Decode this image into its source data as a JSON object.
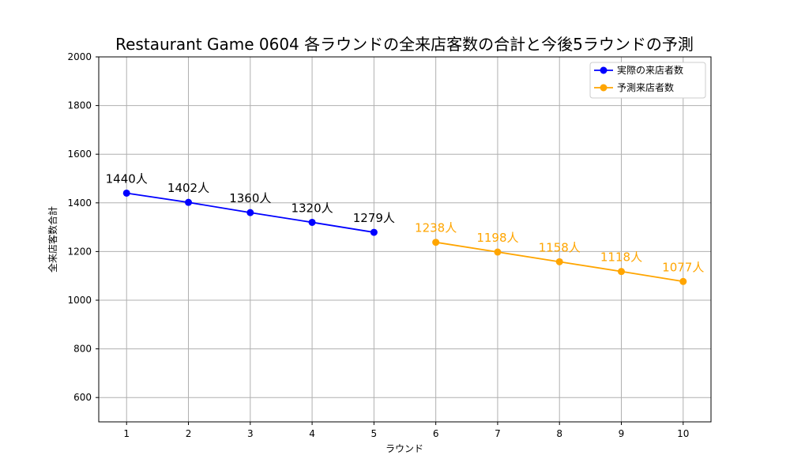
{
  "chart_data": {
    "type": "line",
    "title": "Restaurant Game 0604 各ラウンドの全来店客数の合計と今後5ラウンドの予測",
    "xlabel": "ラウンド",
    "ylabel": "全来店客数合計",
    "xlim": [
      0.55,
      10.45
    ],
    "ylim": [
      500,
      2000
    ],
    "x_ticks": [
      "1",
      "2",
      "3",
      "4",
      "5",
      "6",
      "7",
      "8",
      "9",
      "10"
    ],
    "y_ticks": [
      "600",
      "800",
      "1000",
      "1200",
      "1400",
      "1600",
      "1800",
      "2000"
    ],
    "grid": true,
    "legend_position": "top-right",
    "series": [
      {
        "name": "実際の来店者数",
        "color": "#0000ff",
        "x": [
          1,
          2,
          3,
          4,
          5
        ],
        "y": [
          1440,
          1402,
          1360,
          1320,
          1279
        ],
        "labels": [
          "1440人",
          "1402人",
          "1360人",
          "1320人",
          "1279人"
        ],
        "label_color": "#000000"
      },
      {
        "name": "予測来店者数",
        "color": "#ffa500",
        "x": [
          6,
          7,
          8,
          9,
          10
        ],
        "y": [
          1238,
          1198,
          1158,
          1118,
          1077
        ],
        "labels": [
          "1238人",
          "1198人",
          "1158人",
          "1118人",
          "1077人"
        ],
        "label_color": "#ffa500"
      }
    ]
  }
}
